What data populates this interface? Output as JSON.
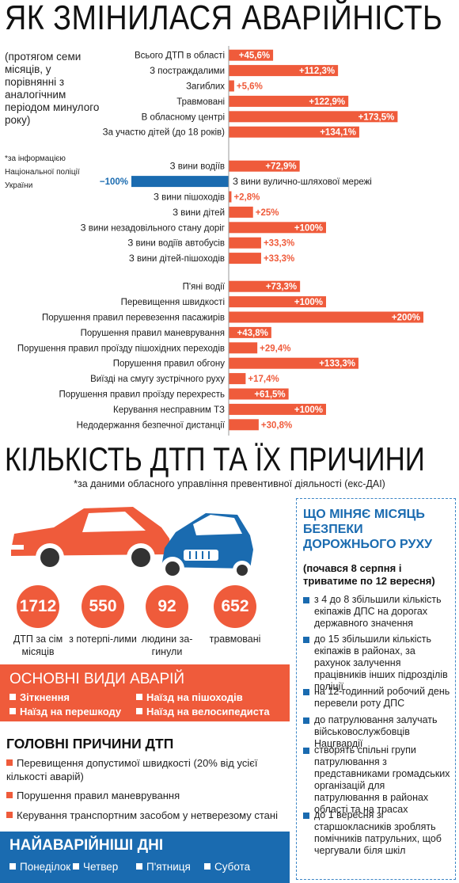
{
  "title1": "ЯК ЗМІНИЛАСЯ АВАРІЙНІСТЬ",
  "intro": "(протягом семи місяців, у порівнянні з аналогічним періодом минулого року)",
  "footnote1": "*за інформацією Національної поліції України",
  "chart_data": {
    "type": "bar",
    "orientation": "horizontal",
    "groups": [
      {
        "categories": [
          "Всього ДТП в області",
          "З постраждалими",
          "Загиблих",
          "Травмовані",
          "В обласному центрі",
          "За участю дітей (до 18 років)"
        ],
        "values": [
          45.6,
          112.3,
          5.6,
          122.9,
          173.5,
          134.1
        ],
        "labels": [
          "+45,6%",
          "+112,3%",
          "+5,6%",
          "+122,9%",
          "+173,5%",
          "+134,1%"
        ]
      },
      {
        "categories": [
          "З вини водіїв",
          "З вини вулично-шляхової мережі",
          "З вини пішоходів",
          "З вини дітей",
          "З вини незадовільного стану доріг",
          "З вини водіїв автобусів",
          "З вини дітей-пішоходів"
        ],
        "values": [
          72.9,
          -100,
          2.8,
          25,
          100,
          33.3,
          33.3
        ],
        "labels": [
          "+72,9%",
          "−100%",
          "+2,8%",
          "+25%",
          "+100%",
          "+33,3%",
          "+33,3%"
        ]
      },
      {
        "categories": [
          "П'яні водії",
          "Перевищення швидкості",
          "Порушення правил перевезення пасажирів",
          "Порушення правил маневрування",
          "Порушення правил проїзду пішохідних переходів",
          "Порушення правил обгону",
          "Виїзді на смугу зустрічного руху",
          "Порушення правил проїзду перехресть",
          "Керування несправним ТЗ",
          "Недодержання безпечної дистанції"
        ],
        "values": [
          73.3,
          100,
          200,
          43.8,
          29.4,
          133.3,
          17.4,
          61.5,
          100,
          30.8
        ],
        "labels": [
          "+73,3%",
          "+100%",
          "+200%",
          "+43,8%",
          "+29,4%",
          "+133,3%",
          "+17,4%",
          "+61,5%",
          "+100%",
          "+30,8%"
        ]
      }
    ],
    "colors": {
      "positive": "#ef5b3b",
      "negative": "#1a6bb0"
    }
  },
  "title2": "КІЛЬКІСТЬ ДТП ТА ЇХ ПРИЧИНИ",
  "source2": "*за даними обласного управління превентивної діяльності (екс-ДАІ)",
  "stats": [
    {
      "value": "1712",
      "label": "ДТП за сім місяців"
    },
    {
      "value": "550",
      "label": "з потерпі-лими"
    },
    {
      "value": "92",
      "label": "людини за-гинули"
    },
    {
      "value": "652",
      "label": "травмовані"
    }
  ],
  "types": {
    "heading": "ОСНОВНІ ВИДИ АВАРІЙ",
    "items": [
      "Зіткнення",
      "Наїзд на пішоходів",
      "Наїзд на перешкоду",
      "Наїзд на велосипедиста"
    ]
  },
  "causes": {
    "heading": "ГОЛОВНІ ПРИЧИНИ ДТП",
    "items": [
      "Перевищення допустимої швидкості (20% від усієї кількості аварій)",
      "Порушення правил маневрування",
      "Керування транспортним засобом у нетверезому стані"
    ]
  },
  "days": {
    "heading": "НАЙАВАРІЙНІШІ ДНІ",
    "items": [
      "Понеділок",
      "Четвер",
      "П'ятниця",
      "Субота"
    ]
  },
  "side": {
    "heading": "ЩО МІНЯЄ МІСЯЦЬ БЕЗПЕКИ ДОРОЖНЬОГО РУХУ",
    "sub": "(почався 8 серпня і триватиме по 12 вересня)",
    "items": [
      "з 4 до 8 збільшили кількість екіпажів ДПС на дорогах державного значення",
      "до 15 збільшили кількість екіпажів в районах, за рахунок залучення працівників інших підрозділів поліції",
      "на 12-годинний робочий день перевели роту ДПС",
      "до патрулювання залучать військовослужбовців Нацгвардії",
      "створять спільні групи патрулювання з представниками громадських організацій для патрулювання в районах області та на трасах",
      "до 1 вересня зі старшокласників зроблять помічників патрульних, щоб чергували біля шкіл"
    ]
  }
}
